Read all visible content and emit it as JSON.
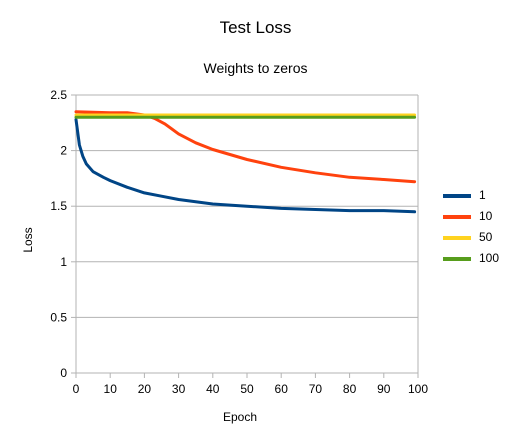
{
  "chart_data": {
    "type": "line",
    "title": "Test Loss",
    "subtitle": "Weights to zeros",
    "xlabel": "Epoch",
    "ylabel": "Loss",
    "xlim": [
      0,
      100
    ],
    "ylim": [
      0,
      2.5
    ],
    "xticks": [
      "0",
      "10",
      "20",
      "30",
      "40",
      "50",
      "60",
      "70",
      "80",
      "90",
      "100"
    ],
    "yticks": [
      "0",
      "0.5",
      "1",
      "1.5",
      "2",
      "2.5"
    ],
    "grid": true,
    "legend_position": "right",
    "series": [
      {
        "name": "1",
        "color": "#004586",
        "x": [
          0,
          1,
          2,
          3,
          5,
          8,
          10,
          15,
          20,
          25,
          30,
          40,
          50,
          60,
          70,
          80,
          90,
          99
        ],
        "y": [
          2.28,
          2.05,
          1.95,
          1.88,
          1.81,
          1.76,
          1.73,
          1.67,
          1.62,
          1.59,
          1.56,
          1.52,
          1.5,
          1.48,
          1.47,
          1.46,
          1.46,
          1.45
        ]
      },
      {
        "name": "10",
        "color": "#ff420e",
        "x": [
          0,
          10,
          15,
          20,
          23,
          26,
          30,
          35,
          40,
          50,
          60,
          70,
          80,
          90,
          99
        ],
        "y": [
          2.35,
          2.34,
          2.34,
          2.32,
          2.29,
          2.24,
          2.15,
          2.07,
          2.01,
          1.92,
          1.85,
          1.8,
          1.76,
          1.74,
          1.72
        ]
      },
      {
        "name": "50",
        "color": "#ffd320",
        "x": [
          0,
          99
        ],
        "y": [
          2.32,
          2.32
        ]
      },
      {
        "name": "100",
        "color": "#579d1c",
        "x": [
          0,
          99
        ],
        "y": [
          2.3,
          2.3
        ]
      }
    ]
  }
}
